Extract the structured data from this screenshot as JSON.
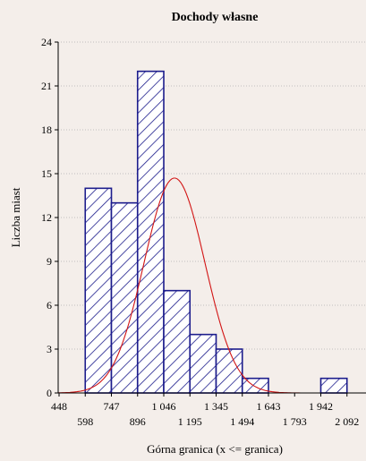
{
  "chart_data": {
    "type": "bar",
    "title": "Dochody własne",
    "xlabel": "Górna granica (x <= granica)",
    "ylabel": "Liczba miast",
    "ylim": [
      0,
      24
    ],
    "yticks": [
      "0",
      "3",
      "6",
      "9",
      "12",
      "15",
      "18",
      "21",
      "24"
    ],
    "xtick_labels_upper": [
      "448",
      "747",
      "1 046",
      "1 345",
      "1 643",
      "1 942"
    ],
    "xtick_labels_lower": [
      "598",
      "896",
      "1 195",
      "1 494",
      "1 793",
      "2 092"
    ],
    "grid": true,
    "bins": [
      {
        "upper": "747",
        "value": 14
      },
      {
        "upper": "896",
        "value": 13
      },
      {
        "upper": "1 046",
        "value": 22
      },
      {
        "upper": "1 195",
        "value": 7
      },
      {
        "upper": "1 345",
        "value": 4
      },
      {
        "upper": "1 494",
        "value": 3
      },
      {
        "upper": "1 643",
        "value": 1
      },
      {
        "upper": "1 793",
        "value": 0
      },
      {
        "upper": "1 942",
        "value": 0
      },
      {
        "upper": "2 092",
        "value": 1
      }
    ],
    "fit_curve": {
      "kind": "normal",
      "peak_y": 14.7,
      "peak_x_value": 1046
    },
    "colors": {
      "background": "#f4eeea",
      "bar_stroke": "#1c1c8c",
      "bar_fill": "#ffffff",
      "hatch": "#1c1c8c",
      "curve": "#d21414",
      "grid": "#b0b0b0"
    }
  }
}
